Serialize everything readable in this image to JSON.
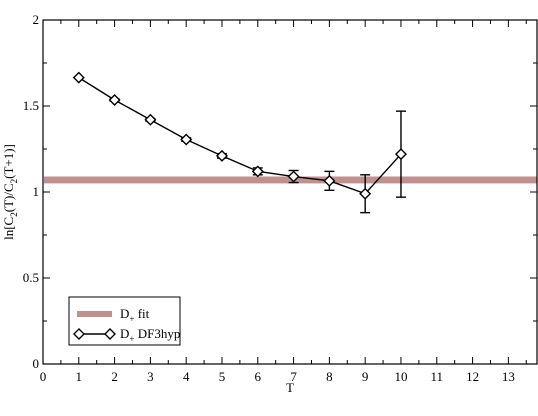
{
  "chart_data": {
    "type": "line",
    "xlabel": "T",
    "ylabel": {
      "parts": [
        "ln[C",
        "2",
        "(T)/C",
        "2",
        "(T+1)]"
      ]
    },
    "xlim": [
      0,
      13.8
    ],
    "ylim": [
      0,
      2
    ],
    "x_ticks": [
      0,
      1,
      2,
      3,
      4,
      5,
      6,
      7,
      8,
      9,
      10,
      11,
      12,
      13
    ],
    "x_tick_labels": [
      "0",
      "1",
      "2",
      "3",
      "4",
      "5",
      "6",
      "7",
      "8",
      "9",
      "10",
      "11",
      "12",
      "13"
    ],
    "y_ticks": [
      0,
      0.5,
      1,
      1.5,
      2
    ],
    "y_tick_labels": [
      "0",
      "0.5",
      "1",
      "1.5",
      "2"
    ],
    "grid": false,
    "legend_position": "bottom-left",
    "fit_band": {
      "legend": {
        "main": "D",
        "sub": "+",
        "rest": " fit"
      },
      "y_low": 1.05,
      "y_high": 1.09,
      "color": "#c09090"
    },
    "series": [
      {
        "legend": {
          "main": "D",
          "sub": "+",
          "rest": " DF3hyp"
        },
        "marker": "diamond",
        "color": "#000000",
        "x": [
          1,
          2,
          3,
          4,
          5,
          6,
          7,
          8,
          9,
          10
        ],
        "y": [
          1.665,
          1.535,
          1.42,
          1.305,
          1.21,
          1.12,
          1.09,
          1.065,
          0.99,
          1.22
        ],
        "yerr": [
          0.005,
          0.006,
          0.008,
          0.01,
          0.013,
          0.02,
          0.035,
          0.055,
          0.11,
          0.25
        ]
      }
    ]
  }
}
